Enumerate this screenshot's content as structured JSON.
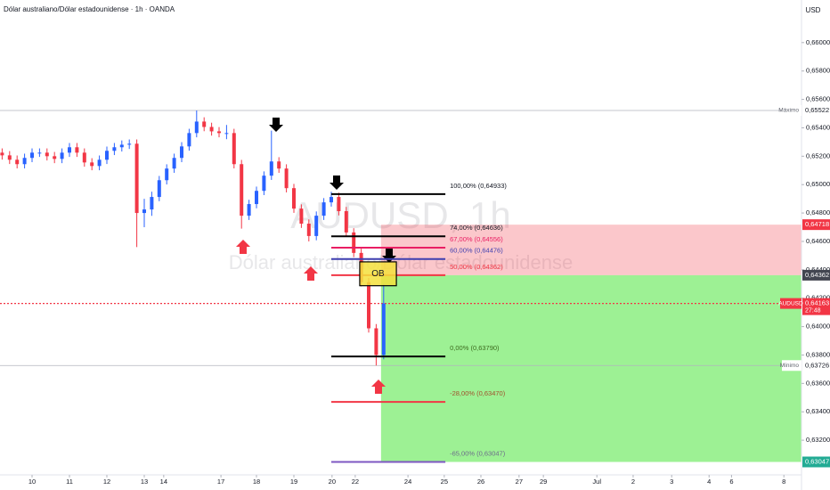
{
  "chart_data": {
    "type": "candlestick",
    "title": "Dólar australiano/Dólar estadounidense · 1h · OANDA",
    "currency": "USD",
    "watermark": "AUDUSD, 1h",
    "watermark_description": "Dólar australiano/Dólar estadounidense",
    "up_color": "#2962ff",
    "down_color": "#f23645",
    "x": [
      -0.8,
      -0.6,
      -0.4,
      -0.2,
      0,
      0.2,
      0.4,
      0.6,
      0.8,
      1,
      1.2,
      1.4,
      1.6,
      1.8,
      2,
      2.2,
      2.4,
      2.6,
      2.8,
      3,
      3.2,
      3.4,
      3.6,
      3.8,
      4,
      4.2,
      4.4,
      4.6,
      4.8,
      5,
      5.2,
      5.4,
      5.6,
      5.8,
      6,
      6.2,
      6.4,
      6.6,
      6.8,
      7,
      7.2,
      7.4,
      7.6,
      7.8,
      8,
      8.2,
      8.4,
      8.6,
      8.8,
      9,
      9.2,
      9.4
    ],
    "open": [
      0.65225,
      0.65206,
      0.65175,
      0.65144,
      0.65188,
      0.65225,
      0.65225,
      0.652,
      0.65181,
      0.65225,
      0.65263,
      0.65225,
      0.65156,
      0.65131,
      0.65175,
      0.65238,
      0.65263,
      0.65281,
      0.65288,
      0.648,
      0.64825,
      0.64913,
      0.65031,
      0.65113,
      0.65188,
      0.65269,
      0.65363,
      0.65444,
      0.65406,
      0.65375,
      0.65363,
      0.65363,
      0.65144,
      0.64781,
      0.64863,
      0.64956,
      0.65063,
      0.65163,
      0.65113,
      0.64975,
      0.64831,
      0.64725,
      0.64638,
      0.64781,
      0.64875,
      0.64913,
      0.64813,
      0.64663,
      0.64519,
      0.64313,
      0.63988,
      0.638
    ],
    "high": [
      0.65255,
      0.65236,
      0.65205,
      0.65218,
      0.65255,
      0.65255,
      0.65255,
      0.6523,
      0.65255,
      0.65293,
      0.65293,
      0.65255,
      0.65186,
      0.65205,
      0.65268,
      0.65293,
      0.65311,
      0.65318,
      0.65318,
      0.649,
      0.6495,
      0.65061,
      0.65143,
      0.65218,
      0.65299,
      0.65393,
      0.65522,
      0.65474,
      0.65436,
      0.65405,
      0.6542,
      0.65393,
      0.65174,
      0.64893,
      0.64986,
      0.65093,
      0.6538,
      0.65193,
      0.65143,
      0.65005,
      0.64861,
      0.64755,
      0.64811,
      0.64905,
      0.6495,
      0.64943,
      0.64843,
      0.64693,
      0.64549,
      0.64343,
      0.64018,
      0.643
    ],
    "low": [
      0.65176,
      0.65145,
      0.65114,
      0.65114,
      0.65158,
      0.65195,
      0.6517,
      0.65151,
      0.65151,
      0.65195,
      0.65195,
      0.65126,
      0.65101,
      0.65101,
      0.65145,
      0.65208,
      0.65233,
      0.65251,
      0.6456,
      0.647,
      0.6478,
      0.64883,
      0.65001,
      0.65083,
      0.65158,
      0.65239,
      0.65333,
      0.65376,
      0.65345,
      0.65333,
      0.6532,
      0.65114,
      0.6469,
      0.64751,
      0.64833,
      0.64926,
      0.65033,
      0.65083,
      0.64945,
      0.64801,
      0.64695,
      0.646,
      0.64608,
      0.64751,
      0.64845,
      0.64783,
      0.64633,
      0.64489,
      0.64283,
      0.63958,
      0.63726,
      0.6377
    ],
    "close": [
      0.65206,
      0.65175,
      0.65144,
      0.65188,
      0.65225,
      0.65225,
      0.652,
      0.65181,
      0.65225,
      0.65263,
      0.65225,
      0.65156,
      0.65131,
      0.65175,
      0.65238,
      0.65263,
      0.65281,
      0.65288,
      0.648,
      0.64825,
      0.64913,
      0.65031,
      0.65113,
      0.65188,
      0.65269,
      0.65363,
      0.65444,
      0.65406,
      0.65375,
      0.65363,
      0.65363,
      0.65144,
      0.64781,
      0.64863,
      0.64956,
      0.65063,
      0.65163,
      0.65113,
      0.64975,
      0.64831,
      0.64725,
      0.64638,
      0.64781,
      0.64875,
      0.64913,
      0.64813,
      0.64663,
      0.64519,
      0.64313,
      0.63988,
      0.638,
      0.64163
    ],
    "xlim": [
      -0.857,
      20.571
    ],
    "ylim": [
      0.62956,
      0.663
    ],
    "xticks": [
      {
        "value": 0,
        "label": "10"
      },
      {
        "value": 1,
        "label": "11"
      },
      {
        "value": 2,
        "label": "12"
      },
      {
        "value": 3,
        "label": "13"
      },
      {
        "value": 3.52,
        "label": "14"
      },
      {
        "value": 5.05,
        "label": "17"
      },
      {
        "value": 6,
        "label": "18"
      },
      {
        "value": 7,
        "label": "19"
      },
      {
        "value": 8.02,
        "label": "20"
      },
      {
        "value": 8.64,
        "label": "22"
      },
      {
        "value": 10.05,
        "label": "24"
      },
      {
        "value": 11.02,
        "label": "25"
      },
      {
        "value": 12,
        "label": "26"
      },
      {
        "value": 13.02,
        "label": "27"
      },
      {
        "value": 13.67,
        "label": "29"
      },
      {
        "value": 15.1,
        "label": "Jul"
      },
      {
        "value": 16.07,
        "label": "2"
      },
      {
        "value": 17.1,
        "label": "3"
      },
      {
        "value": 18.1,
        "label": "4"
      },
      {
        "value": 18.7,
        "label": "6"
      },
      {
        "value": 20.1,
        "label": "8"
      }
    ],
    "yticks": [
      {
        "value": 0.632,
        "label": "0,63200"
      },
      {
        "value": 0.634,
        "label": "0,63400"
      },
      {
        "value": 0.636,
        "label": "0,63600"
      },
      {
        "value": 0.638,
        "label": "0,63800"
      },
      {
        "value": 0.64,
        "label": "0,64000"
      },
      {
        "value": 0.642,
        "label": "0,64200"
      },
      {
        "value": 0.644,
        "label": "0,64400"
      },
      {
        "value": 0.646,
        "label": "0,64600"
      },
      {
        "value": 0.648,
        "label": "0,64800"
      },
      {
        "value": 0.65,
        "label": "0,65000"
      },
      {
        "value": 0.652,
        "label": "0,65200"
      },
      {
        "value": 0.654,
        "label": "0,65400"
      },
      {
        "value": 0.656,
        "label": "0,65600"
      },
      {
        "value": 0.658,
        "label": "0,65800"
      },
      {
        "value": 0.66,
        "label": "0,66000"
      }
    ],
    "fib_x_range": [
      8.0,
      11.05
    ],
    "fib_levels": [
      {
        "value": 0.64933,
        "label": "100,00% (0,64933)",
        "color": "#000000",
        "label_color": "#131722"
      },
      {
        "value": 0.64636,
        "label": "74,00% (0,64636)",
        "color": "#000000",
        "label_color": "#131722"
      },
      {
        "value": 0.64556,
        "label": "67,00% (0,64556)",
        "color": "#e91e63",
        "label_color": "#e91e63"
      },
      {
        "value": 0.64476,
        "label": "60,00% (0,64476)",
        "color": "#3f3fb0",
        "label_color": "#3f3fb0"
      },
      {
        "value": 0.64362,
        "label": "50,00% (0,64362)",
        "color": "#f23645",
        "label_color": "#f23645"
      },
      {
        "value": 0.6379,
        "label": "0,00% (0,63790)",
        "color": "#000000",
        "label_color": "#3d6b1f"
      },
      {
        "value": 0.6347,
        "label": "-28,00% (0,63470)",
        "color": "#f23645",
        "label_color": "#a0522d"
      },
      {
        "value": 0.63047,
        "label": "-65,00% (0,63047)",
        "color": "#7e57c2",
        "label_color": "#6d6d8a"
      }
    ],
    "position": {
      "x_start": 9.33,
      "stop": {
        "value": 0.64718,
        "label": "0,64718"
      },
      "entry": {
        "value": 0.64362,
        "label": "0,64362"
      },
      "target": {
        "value": 0.63047,
        "label": "0,63047"
      }
    },
    "order_block": {
      "label": "OB",
      "top": 0.64456,
      "bottom": 0.64288,
      "x_range": [
        8.76,
        9.74
      ]
    },
    "last_price": {
      "symbol": "AUDUSD",
      "value": 0.64163,
      "label": "0,64163",
      "countdown": "27:48"
    },
    "maximum": {
      "name": "Máximo",
      "value": 0.65522,
      "label": "0,65522"
    },
    "minimum": {
      "name": "Mínimo",
      "value": 0.63726,
      "label": "0,63726"
    }
  }
}
